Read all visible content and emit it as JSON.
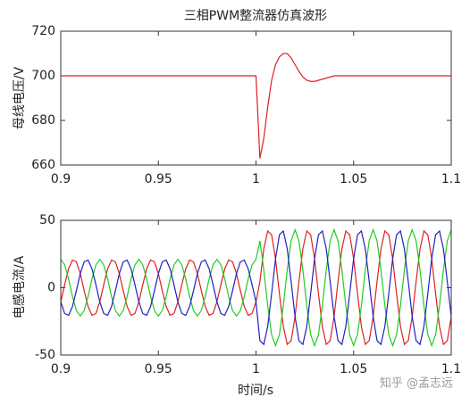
{
  "chart_data": [
    {
      "type": "line",
      "title": "三相PWM整流器仿真波形",
      "ylabel": "母线电压/V",
      "xlim": [
        0.9,
        1.1
      ],
      "xticks": [
        0.9,
        0.95,
        1,
        1.05,
        1.1
      ],
      "ylim": [
        660,
        720
      ],
      "yticks": [
        660,
        680,
        700,
        720
      ],
      "x": [
        0.9,
        0.902,
        0.904,
        0.906,
        0.908,
        0.91,
        0.912,
        0.914,
        0.916,
        0.918,
        0.92,
        0.922,
        0.924,
        0.926,
        0.928,
        0.93,
        0.932,
        0.934,
        0.936,
        0.938,
        0.94,
        0.942,
        0.944,
        0.946,
        0.948,
        0.95,
        0.952,
        0.954,
        0.956,
        0.958,
        0.96,
        0.962,
        0.964,
        0.966,
        0.968,
        0.97,
        0.972,
        0.974,
        0.976,
        0.978,
        0.98,
        0.982,
        0.984,
        0.986,
        0.988,
        0.99,
        0.992,
        0.994,
        0.996,
        0.998,
        1,
        1.002,
        1.004,
        1.006,
        1.008,
        1.01,
        1.012,
        1.014,
        1.016,
        1.018,
        1.02,
        1.022,
        1.024,
        1.026,
        1.028,
        1.03,
        1.032,
        1.034,
        1.036,
        1.038,
        1.04,
        1.042,
        1.044,
        1.046,
        1.048,
        1.05,
        1.052,
        1.054,
        1.056,
        1.058,
        1.06,
        1.062,
        1.064,
        1.066,
        1.068,
        1.07,
        1.072,
        1.074,
        1.076,
        1.078,
        1.08,
        1.082,
        1.084,
        1.086,
        1.088,
        1.09,
        1.092,
        1.094,
        1.096,
        1.098,
        1.1
      ],
      "series": [
        {
          "color": "#e02020",
          "values": [
            700,
            700,
            700,
            700,
            700,
            700,
            700,
            700,
            700,
            700,
            700,
            700,
            700,
            700,
            700,
            700,
            700,
            700,
            700,
            700,
            700,
            700,
            700,
            700,
            700,
            700,
            700,
            700,
            700,
            700,
            700,
            700,
            700,
            700,
            700,
            700,
            700,
            700,
            700,
            700,
            700,
            700,
            700,
            700,
            700,
            700,
            700,
            700,
            700,
            700,
            700,
            663,
            672,
            686,
            698,
            705,
            708.5,
            710,
            710,
            708,
            705,
            702,
            699.5,
            698,
            697.5,
            697.5,
            698,
            698.5,
            699,
            699.5,
            700,
            700,
            700,
            700,
            700,
            700,
            700,
            700,
            700,
            700,
            700,
            700,
            700,
            700,
            700,
            700,
            700,
            700,
            700,
            700,
            700,
            700,
            700,
            700,
            700,
            700,
            700,
            700,
            700,
            700,
            700
          ]
        }
      ]
    },
    {
      "type": "line",
      "ylabel": "电感电流/A",
      "xlabel": "时间/s",
      "xlim": [
        0.9,
        1.1
      ],
      "xticks": [
        0.9,
        0.95,
        1,
        1.05,
        1.1
      ],
      "ylim": [
        -50,
        50
      ],
      "yticks": [
        -50,
        0,
        50
      ],
      "x": [
        0.9,
        0.902,
        0.904,
        0.906,
        0.908,
        0.91,
        0.912,
        0.914,
        0.916,
        0.918,
        0.92,
        0.922,
        0.924,
        0.926,
        0.928,
        0.93,
        0.932,
        0.934,
        0.936,
        0.938,
        0.94,
        0.942,
        0.944,
        0.946,
        0.948,
        0.95,
        0.952,
        0.954,
        0.956,
        0.958,
        0.96,
        0.962,
        0.964,
        0.966,
        0.968,
        0.97,
        0.972,
        0.974,
        0.976,
        0.978,
        0.98,
        0.982,
        0.984,
        0.986,
        0.988,
        0.99,
        0.992,
        0.994,
        0.996,
        0.998,
        1,
        1.002,
        1.004,
        1.006,
        1.008,
        1.01,
        1.012,
        1.014,
        1.016,
        1.018,
        1.02,
        1.022,
        1.024,
        1.026,
        1.028,
        1.03,
        1.032,
        1.034,
        1.036,
        1.038,
        1.04,
        1.042,
        1.044,
        1.046,
        1.048,
        1.05,
        1.052,
        1.054,
        1.056,
        1.058,
        1.06,
        1.062,
        1.064,
        1.066,
        1.068,
        1.07,
        1.072,
        1.074,
        1.076,
        1.078,
        1.08,
        1.082,
        1.084,
        1.086,
        1.088,
        1.09,
        1.092,
        1.094,
        1.096,
        1.098,
        1.1
      ],
      "series": [
        {
          "color": "#e02020",
          "values": [
            -10.5,
            2.2,
            14,
            20.5,
            19.2,
            10.5,
            -2.2,
            -14,
            -20.5,
            -19.2,
            -10.5,
            2.2,
            14,
            20.5,
            19.2,
            10.5,
            -2.2,
            -14,
            -20.5,
            -19.2,
            -10.5,
            2.2,
            14,
            20.5,
            19.2,
            10.5,
            -2.2,
            -14,
            -20.5,
            -19.2,
            -10.5,
            2.2,
            14,
            20.5,
            19.2,
            10.5,
            -2.2,
            -14,
            -20.5,
            -19.2,
            -10.5,
            2.2,
            14,
            20.5,
            19.2,
            10.5,
            -2.2,
            -14,
            -20.5,
            -19.2,
            -10.5,
            4.5,
            28.8,
            42.1,
            39.3,
            21.5,
            -4.5,
            -28.8,
            -42.1,
            -39.3,
            -21.5,
            4.5,
            28.8,
            42.1,
            39.3,
            21.5,
            -4.5,
            -28.8,
            -42.1,
            -39.3,
            -21.5,
            4.5,
            28.8,
            42.1,
            39.3,
            21.5,
            -4.5,
            -28.8,
            -42.1,
            -39.3,
            -21.5,
            4.5,
            28.8,
            42.1,
            39.3,
            21.5,
            -4.5,
            -28.8,
            -42.1,
            -39.3,
            -21.5,
            4.5,
            28.8,
            42.1,
            39.3,
            21.5,
            -4.5,
            -28.8,
            -42.1,
            -39.3,
            -21.5
          ]
        },
        {
          "color": "#20cc20",
          "values": [
            21,
            17,
            6.5,
            -6.5,
            -17,
            -21,
            -17,
            -6.5,
            6.5,
            17,
            21,
            17,
            6.5,
            -6.5,
            -17,
            -21,
            -17,
            -6.5,
            6.5,
            17,
            21,
            17,
            6.5,
            -6.5,
            -17,
            -21,
            -17,
            -6.5,
            6.5,
            17,
            21,
            17,
            6.5,
            -6.5,
            -17,
            -21,
            -17,
            -6.5,
            6.5,
            17,
            21,
            17,
            6.5,
            -6.5,
            -17,
            -21,
            -17,
            -6.5,
            6.5,
            17,
            21,
            34.8,
            13.3,
            -13.3,
            -34.8,
            -43,
            -34.8,
            -13.3,
            13.3,
            34.8,
            43,
            34.8,
            13.3,
            -13.3,
            -34.8,
            -43,
            -34.8,
            -13.3,
            13.3,
            34.8,
            43,
            34.8,
            13.3,
            -13.3,
            -34.8,
            -43,
            -34.8,
            -13.3,
            13.3,
            34.8,
            43,
            34.8,
            13.3,
            -13.3,
            -34.8,
            -43,
            -34.8,
            -13.3,
            13.3,
            34.8,
            43,
            34.8,
            13.3,
            -13.3,
            -34.8,
            -43,
            -34.8,
            -13.3,
            13.3,
            34.8,
            43
          ]
        },
        {
          "color": "#2020c0",
          "values": [
            -10.5,
            -19.2,
            -20.5,
            -14,
            -2.2,
            10.5,
            19.2,
            20.5,
            14,
            2.2,
            -10.5,
            -19.2,
            -20.5,
            -14,
            -2.2,
            10.5,
            19.2,
            20.5,
            14,
            2.2,
            -10.5,
            -19.2,
            -20.5,
            -14,
            -2.2,
            10.5,
            19.2,
            20.5,
            14,
            2.2,
            -10.5,
            -19.2,
            -20.5,
            -14,
            -2.2,
            10.5,
            19.2,
            20.5,
            14,
            2.2,
            -10.5,
            -19.2,
            -20.5,
            -14,
            -2.2,
            10.5,
            19.2,
            20.5,
            14,
            2.2,
            -10.5,
            -39.3,
            -42.1,
            -28.8,
            -4.5,
            21.5,
            39.3,
            42.1,
            28.8,
            4.5,
            -21.5,
            -39.3,
            -42.1,
            -28.8,
            -4.5,
            21.5,
            39.3,
            42.1,
            28.8,
            4.5,
            -21.5,
            -39.3,
            -42.1,
            -28.8,
            -4.5,
            21.5,
            39.3,
            42.1,
            28.8,
            4.5,
            -21.5,
            -39.3,
            -42.1,
            -28.8,
            -4.5,
            21.5,
            39.3,
            42.1,
            28.8,
            4.5,
            -21.5,
            -39.3,
            -42.1,
            -28.8,
            -4.5,
            21.5,
            39.3,
            42.1,
            28.8,
            4.5,
            -21.5
          ]
        }
      ]
    }
  ],
  "watermark": "知乎 @孟志远"
}
